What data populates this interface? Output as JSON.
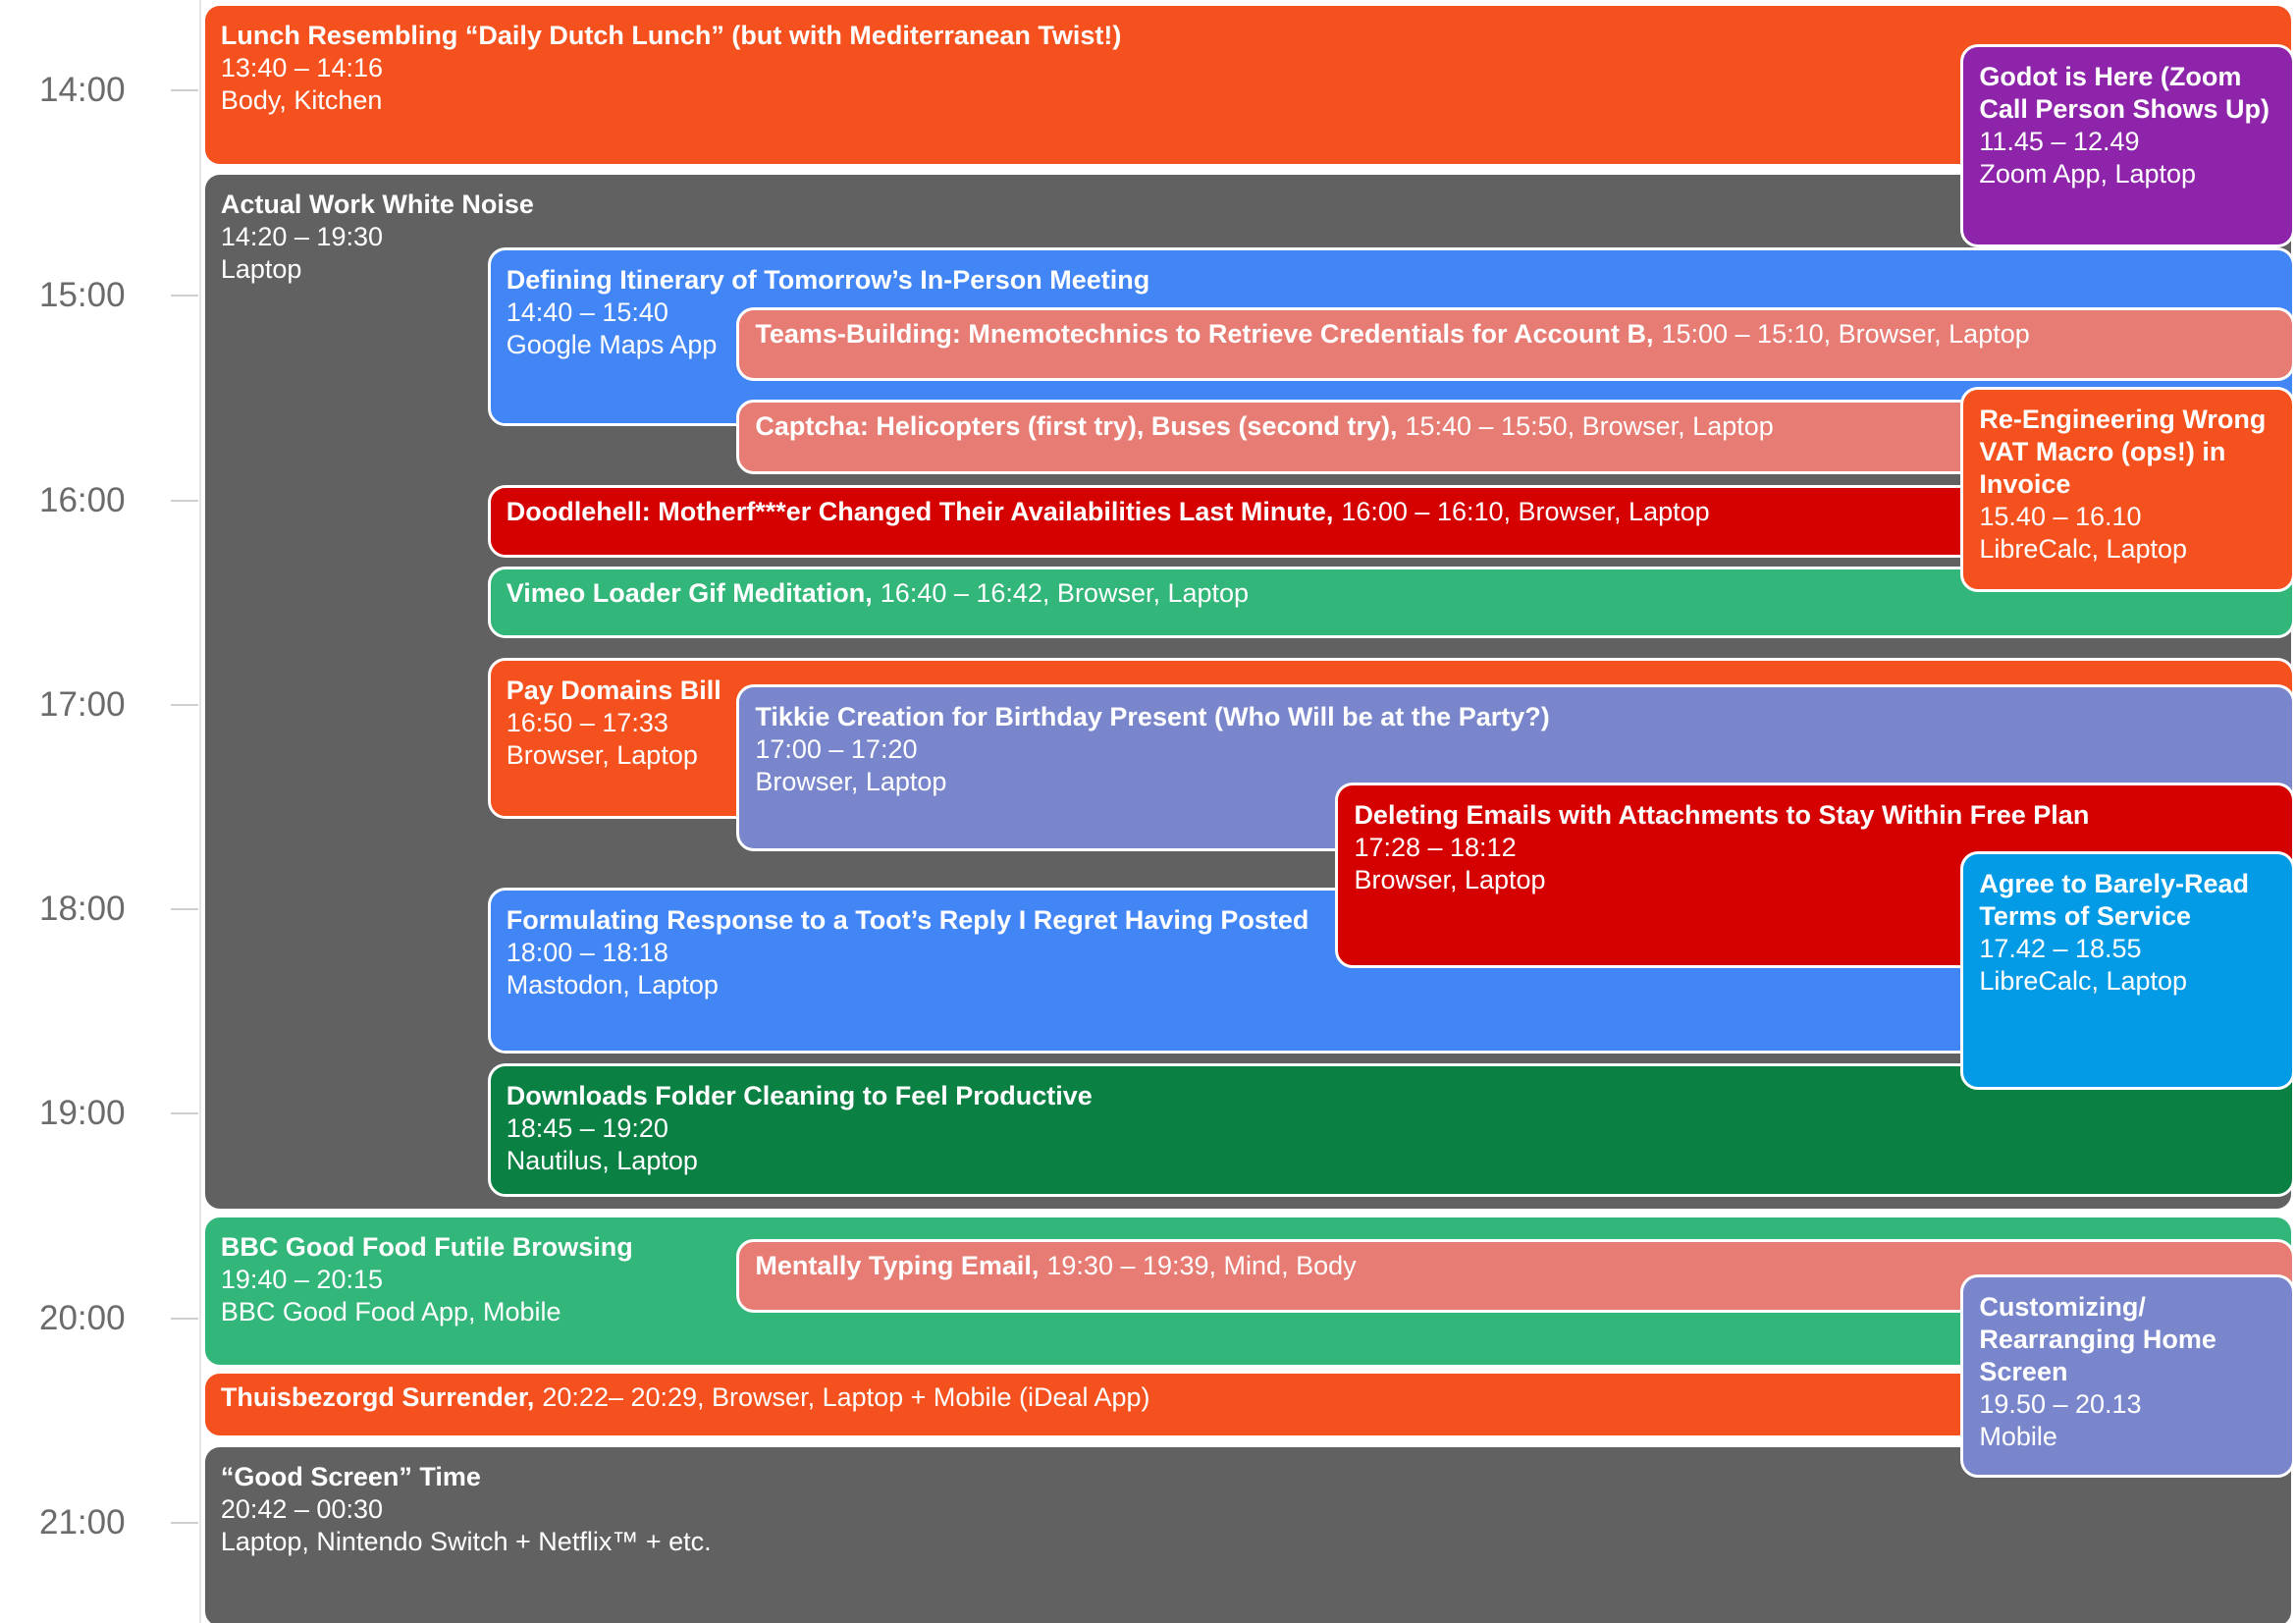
{
  "time_labels": [
    "14:00",
    "15:00",
    "16:00",
    "17:00",
    "18:00",
    "19:00",
    "20:00",
    "21:00"
  ],
  "events": [
    {
      "title": "Lunch Resembling “Daily Dutch Lunch” (but with Mediterranean Twist!)",
      "time": "13:40 – 14:16",
      "details": "Body, Kitchen",
      "color": "#f4511e"
    },
    {
      "title": "Actual Work White Noise",
      "time": "14:20 – 19:30",
      "details": "Laptop",
      "color": "#616161"
    },
    {
      "title": "Defining Itinerary of Tomorrow’s In-Person Meeting",
      "time": "14:40 – 15:40",
      "details": "Google Maps App",
      "color": "#4285f4"
    },
    {
      "title": "Teams-Building: Mnemotechnics to Retrieve Credentials for Account B,",
      "text": "15:00 – 15:10, Browser, Laptop",
      "color": "#e67c73"
    },
    {
      "title": "Captcha: Helicopters (first try), Buses (second try),",
      "text": "15:40 – 15:50, Browser, Laptop",
      "color": "#e67c73"
    },
    {
      "title": "Doodlehell: Motherf***er Changed Their Availabilities Last Minute,",
      "text": "16:00 – 16:10, Browser, Laptop",
      "color": "#d50000"
    },
    {
      "title": "Vimeo Loader Gif Meditation,",
      "text": "16:40 – 16:42, Browser, Laptop",
      "color": "#33b679"
    },
    {
      "title": "Pay Domains Bill",
      "time": "16:50 – 17:33",
      "details": "Browser, Laptop",
      "color": "#f4511e"
    },
    {
      "title": "Tikkie Creation for Birthday Present (Who Will be at the Party?)",
      "time": "17:00 – 17:20",
      "details": "Browser, Laptop",
      "color": "#7986cb"
    },
    {
      "title": "Formulating Response to a Toot’s Reply I Regret Having Posted",
      "time": "18:00 – 18:18",
      "details": "Mastodon, Laptop",
      "color": "#4285f4"
    },
    {
      "title": "Deleting Emails with Attachments to Stay Within Free Plan",
      "time": "17:28 – 18:12",
      "details": "Browser, Laptop",
      "color": "#d50000"
    },
    {
      "title": "Downloads Folder Cleaning to Feel Productive",
      "time": "18:45 – 19:20",
      "details": "Nautilus, Laptop",
      "color": "#0b8043"
    },
    {
      "title": "Godot is Here (Zoom Call Person Shows Up)",
      "time": "11.45 – 12.49",
      "details": "Zoom App, Laptop",
      "color": "#8e24aa"
    },
    {
      "title": "Re-Engineering Wrong VAT Macro (ops!) in Invoice",
      "time": "15.40 – 16.10",
      "details": "LibreCalc, Laptop",
      "color": "#f4511e"
    },
    {
      "title": "Agree to Barely-Read Terms of Service",
      "time": "17.42 – 18.55",
      "details": "LibreCalc, Laptop",
      "color": "#039be5"
    },
    {
      "title": "BBC Good Food Futile Browsing",
      "time": "19:40 – 20:15",
      "details": "BBC Good Food App, Mobile",
      "color": "#33b679"
    },
    {
      "title": "Mentally Typing Email,",
      "text": "19:30 – 19:39, Mind, Body",
      "color": "#e67c73"
    },
    {
      "title": "Thuisbezorgd Surrender,",
      "text": "20:22– 20:29, Browser, Laptop + Mobile (iDeal App)",
      "color": "#f4511e"
    },
    {
      "title": "“Good Screen” Time",
      "time": "20:42 – 00:30",
      "details": "Laptop, Nintendo Switch + Netflix™ + etc.",
      "color": "#616161"
    },
    {
      "title": "Customizing/ Rearranging Home Screen",
      "time": "19.50 – 20.13",
      "details": "Mobile",
      "color": "#7986cb"
    }
  ]
}
